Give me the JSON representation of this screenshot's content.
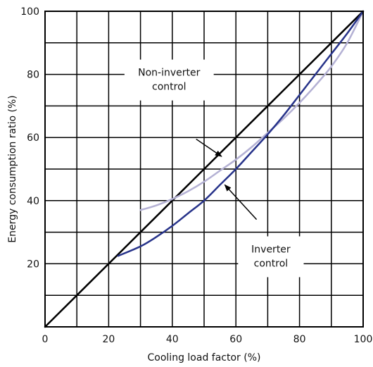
{
  "chart_data": {
    "type": "line",
    "title": "",
    "xlabel": "Cooling load factor (%)",
    "ylabel": "Energy consumption ratio (%)",
    "xlim": [
      0,
      100
    ],
    "ylim": [
      0,
      100
    ],
    "x_ticks": [
      0,
      20,
      40,
      60,
      80,
      100
    ],
    "y_ticks": [
      20,
      40,
      60,
      80,
      100
    ],
    "grid": true,
    "grid_step": 10,
    "series": [
      {
        "name": "",
        "color": "#000000",
        "x": [
          0,
          100
        ],
        "y": [
          0,
          100
        ]
      },
      {
        "name": "",
        "color": "#b4b1d4",
        "x": [
          30,
          35,
          40,
          45,
          50,
          55,
          60,
          65,
          70,
          75,
          80,
          85,
          90,
          95,
          100
        ],
        "y": [
          37,
          38.5,
          40.5,
          43,
          46,
          49.5,
          53,
          57,
          61.5,
          66,
          71,
          76.5,
          82.5,
          90,
          100
        ]
      },
      {
        "name": "",
        "color": "#27338a",
        "x": [
          23,
          30,
          35,
          40,
          45,
          50,
          55,
          60,
          65,
          70,
          75,
          80,
          85,
          90,
          95,
          100
        ],
        "y": [
          22.5,
          25.5,
          28.5,
          32,
          36,
          40,
          45,
          50,
          55.5,
          61,
          67,
          73.5,
          80,
          86.5,
          93,
          100
        ]
      }
    ],
    "annotations": [
      {
        "name": "non-inverter",
        "lines": [
          "Non-inverter",
          "control"
        ],
        "text_at": [
          39,
          80
        ],
        "arrow_from": [
          47.5,
          59.5
        ],
        "arrow_to": [
          55.5,
          54
        ]
      },
      {
        "name": "inverter",
        "lines": [
          "Inverter",
          "control"
        ],
        "text_at": [
          71,
          24
        ],
        "arrow_from": [
          66.5,
          34
        ],
        "arrow_to": [
          56.5,
          45
        ]
      }
    ]
  }
}
